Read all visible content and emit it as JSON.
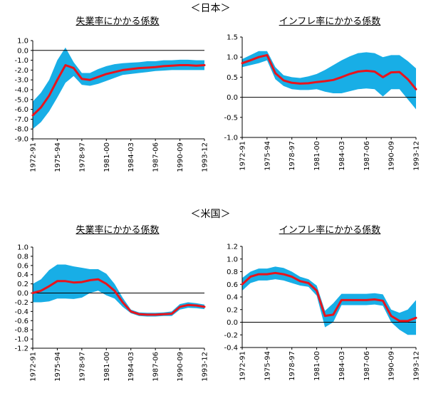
{
  "headings": {
    "japan": "＜日本＞",
    "us": "＜米国＞"
  },
  "colors": {
    "band": "#18aee6",
    "line": "#e8141c",
    "axis": "#000000"
  },
  "chart_data": [
    {
      "type": "line",
      "title": "失業率にかかる係数",
      "ylim": [
        -9.0,
        1.0
      ],
      "yticks": [
        "1.0",
        "0.0",
        "-1.0",
        "-2.0",
        "-3.0",
        "-4.0",
        "-5.0",
        "-6.0",
        "-7.0",
        "-8.0",
        "-9.0"
      ],
      "ytick_values": [
        1,
        0,
        -1,
        -2,
        -3,
        -4,
        -5,
        -6,
        -7,
        -8,
        -9
      ],
      "categories": [
        "1972-91",
        "1975-94",
        "1978-97",
        "1981-00",
        "1984-03",
        "1987-06",
        "1990-09",
        "1993-12"
      ],
      "x": [
        0,
        1,
        2,
        3,
        4,
        5,
        6,
        7,
        8,
        9,
        10,
        11,
        12,
        13,
        14,
        15,
        16,
        17,
        18,
        19,
        20,
        21
      ],
      "series": [
        {
          "values": [
            -6.6,
            -5.8,
            -4.6,
            -3.0,
            -1.5,
            -1.8,
            -2.9,
            -3.0,
            -2.7,
            -2.4,
            -2.2,
            -2.0,
            -1.9,
            -1.8,
            -1.75,
            -1.7,
            -1.6,
            -1.55,
            -1.5,
            -1.5,
            -1.55,
            -1.5
          ]
        }
      ],
      "band_upper": [
        -5.2,
        -4.3,
        -3.0,
        -1.0,
        0.3,
        -1.2,
        -2.3,
        -2.3,
        -1.9,
        -1.6,
        -1.4,
        -1.3,
        -1.25,
        -1.2,
        -1.1,
        -1.1,
        -1.0,
        -1.0,
        -0.95,
        -0.95,
        -1.0,
        -1.0
      ],
      "band_lower": [
        -8.0,
        -7.3,
        -6.2,
        -4.8,
        -3.3,
        -2.6,
        -3.5,
        -3.6,
        -3.4,
        -3.1,
        -2.8,
        -2.5,
        -2.4,
        -2.3,
        -2.2,
        -2.1,
        -2.05,
        -2.0,
        -2.0,
        -2.0,
        -2.0,
        -2.0
      ]
    },
    {
      "type": "line",
      "title": "インフレ率にかかる係数",
      "ylim": [
        -1.0,
        1.5
      ],
      "yticks": [
        "1.5",
        "1.0",
        "0.5",
        "0.0",
        "-0.5",
        "-1.0"
      ],
      "ytick_values": [
        1.5,
        1.0,
        0.5,
        0.0,
        -0.5,
        -1.0
      ],
      "categories": [
        "1972-91",
        "1975-94",
        "1978-97",
        "1981-00",
        "1984-03",
        "1987-06",
        "1990-09",
        "1993-12"
      ],
      "x": [
        0,
        1,
        2,
        3,
        4,
        5,
        6,
        7,
        8,
        9,
        10,
        11,
        12,
        13,
        14,
        15,
        16,
        17,
        18,
        19,
        20,
        21
      ],
      "series": [
        {
          "values": [
            0.85,
            0.92,
            1.0,
            1.05,
            0.6,
            0.42,
            0.36,
            0.34,
            0.35,
            0.38,
            0.4,
            0.43,
            0.5,
            0.58,
            0.64,
            0.66,
            0.64,
            0.5,
            0.62,
            0.63,
            0.45,
            0.2
          ]
        }
      ],
      "band_upper": [
        0.95,
        1.05,
        1.15,
        1.15,
        0.75,
        0.55,
        0.5,
        0.48,
        0.52,
        0.58,
        0.68,
        0.8,
        0.92,
        1.02,
        1.1,
        1.12,
        1.1,
        1.0,
        1.05,
        1.05,
        0.9,
        0.72
      ],
      "band_lower": [
        0.75,
        0.8,
        0.85,
        0.92,
        0.45,
        0.28,
        0.2,
        0.18,
        0.18,
        0.2,
        0.14,
        0.1,
        0.1,
        0.15,
        0.2,
        0.22,
        0.2,
        0.02,
        0.2,
        0.2,
        -0.05,
        -0.3
      ]
    },
    {
      "type": "line",
      "title": "失業率にかかる係数",
      "ylim": [
        -1.2,
        1.0
      ],
      "yticks": [
        "1.0",
        "0.8",
        "0.6",
        "0.4",
        "0.2",
        "0.0",
        "-0.2",
        "-0.4",
        "-0.6",
        "-0.8",
        "-1.0",
        "-1.2"
      ],
      "ytick_values": [
        1.0,
        0.8,
        0.6,
        0.4,
        0.2,
        0.0,
        -0.2,
        -0.4,
        -0.6,
        -0.8,
        -1.0,
        -1.2
      ],
      "categories": [
        "1972-91",
        "1975-94",
        "1978-97",
        "1981-00",
        "1984-03",
        "1987-06",
        "1990-09",
        "1993-12"
      ],
      "x": [
        0,
        1,
        2,
        3,
        4,
        5,
        6,
        7,
        8,
        9,
        10,
        11,
        12,
        13,
        14,
        15,
        16,
        17,
        18,
        19,
        20,
        21
      ],
      "series": [
        {
          "values": [
            0.0,
            0.05,
            0.15,
            0.26,
            0.26,
            0.23,
            0.24,
            0.28,
            0.3,
            0.2,
            0.05,
            -0.2,
            -0.4,
            -0.46,
            -0.47,
            -0.47,
            -0.46,
            -0.45,
            -0.3,
            -0.26,
            -0.27,
            -0.3
          ]
        }
      ],
      "band_upper": [
        0.2,
        0.3,
        0.5,
        0.62,
        0.62,
        0.58,
        0.55,
        0.52,
        0.52,
        0.42,
        0.2,
        -0.1,
        -0.36,
        -0.42,
        -0.43,
        -0.43,
        -0.42,
        -0.4,
        -0.24,
        -0.2,
        -0.22,
        -0.25
      ],
      "band_lower": [
        -0.2,
        -0.2,
        -0.18,
        -0.12,
        -0.12,
        -0.13,
        -0.1,
        0.0,
        0.05,
        -0.05,
        -0.12,
        -0.3,
        -0.44,
        -0.5,
        -0.51,
        -0.51,
        -0.5,
        -0.5,
        -0.36,
        -0.32,
        -0.33,
        -0.35
      ]
    },
    {
      "type": "line",
      "title": "インフレ率にかかる係数",
      "ylim": [
        -0.4,
        1.2
      ],
      "yticks": [
        "1.2",
        "1.0",
        "0.8",
        "0.6",
        "0.4",
        "0.2",
        "0.0",
        "-0.2",
        "-0.4"
      ],
      "ytick_values": [
        1.2,
        1.0,
        0.8,
        0.6,
        0.4,
        0.2,
        0.0,
        -0.2,
        -0.4
      ],
      "categories": [
        "1972-91",
        "1975-94",
        "1978-97",
        "1981-00",
        "1984-03",
        "1987-06",
        "1990-09",
        "1993-12"
      ],
      "x": [
        0,
        1,
        2,
        3,
        4,
        5,
        6,
        7,
        8,
        9,
        10,
        11,
        12,
        13,
        14,
        15,
        16,
        17,
        18,
        19,
        20,
        21
      ],
      "series": [
        {
          "values": [
            0.6,
            0.72,
            0.76,
            0.76,
            0.78,
            0.76,
            0.72,
            0.65,
            0.62,
            0.5,
            0.1,
            0.12,
            0.35,
            0.35,
            0.35,
            0.35,
            0.36,
            0.34,
            0.1,
            0.02,
            0.02,
            0.07
          ]
        }
      ],
      "band_upper": [
        0.7,
        0.8,
        0.85,
        0.85,
        0.88,
        0.86,
        0.8,
        0.72,
        0.68,
        0.58,
        0.18,
        0.3,
        0.45,
        0.45,
        0.45,
        0.45,
        0.46,
        0.44,
        0.2,
        0.15,
        0.2,
        0.35
      ],
      "band_lower": [
        0.5,
        0.62,
        0.66,
        0.66,
        0.68,
        0.66,
        0.62,
        0.58,
        0.56,
        0.42,
        -0.08,
        0.0,
        0.27,
        0.27,
        0.27,
        0.27,
        0.28,
        0.26,
        0.0,
        -0.12,
        -0.2,
        -0.2
      ]
    }
  ]
}
